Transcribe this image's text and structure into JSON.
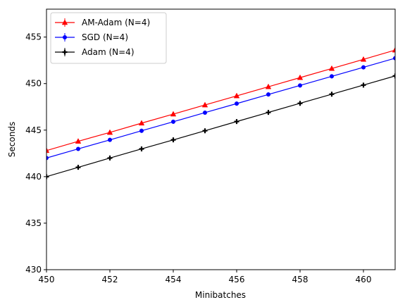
{
  "chart_data": {
    "type": "line",
    "title": "",
    "xlabel": "Minibatches",
    "ylabel": "Seconds",
    "xlim": [
      450,
      461
    ],
    "ylim": [
      430,
      458
    ],
    "xticks": [
      "450",
      "452",
      "454",
      "456",
      "458",
      "460"
    ],
    "yticks": [
      "430",
      "435",
      "440",
      "445",
      "450",
      "455"
    ],
    "legend_position": "top-left",
    "grid": false,
    "x": [
      450,
      451,
      452,
      453,
      454,
      455,
      456,
      457,
      458,
      459,
      460,
      461
    ],
    "series": [
      {
        "name": "AM-Adam (N=4)",
        "color": "#ff0000",
        "marker": "triangle",
        "values": [
          442.8,
          443.8,
          444.75,
          445.75,
          446.72,
          447.7,
          448.68,
          449.66,
          450.64,
          451.62,
          452.6,
          453.6
        ]
      },
      {
        "name": "SGD (N=4)",
        "color": "#0000ff",
        "marker": "circle",
        "values": [
          442.0,
          442.98,
          443.95,
          444.93,
          445.9,
          446.88,
          447.85,
          448.83,
          449.8,
          450.78,
          451.75,
          452.73
        ]
      },
      {
        "name": "Adam (N=4)",
        "color": "#000000",
        "marker": "plus",
        "values": [
          440.0,
          441.0,
          442.0,
          442.98,
          443.95,
          444.93,
          445.92,
          446.9,
          447.88,
          448.86,
          449.84,
          450.82
        ]
      }
    ]
  }
}
